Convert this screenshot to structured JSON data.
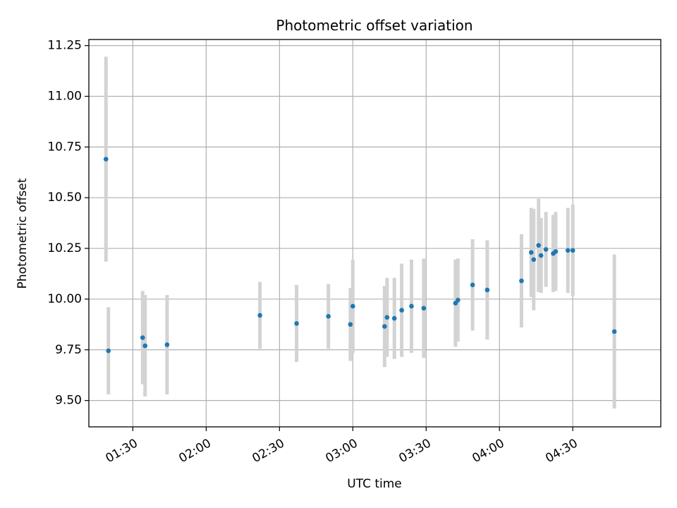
{
  "chart_data": {
    "type": "scatter",
    "title": "Photometric offset variation",
    "xlabel": "UTC time",
    "ylabel": "Photometric offset",
    "x_axis": "time (HH:MM, UTC)",
    "xlim": [
      "01:12",
      "05:06"
    ],
    "ylim": [
      9.37,
      11.28
    ],
    "x_ticks": [
      "01:30",
      "02:00",
      "02:30",
      "03:00",
      "03:30",
      "04:00",
      "04:30"
    ],
    "y_ticks": [
      "9.50",
      "9.75",
      "10.00",
      "10.25",
      "10.50",
      "10.75",
      "11.00",
      "11.25"
    ],
    "grid": true,
    "legend": "none",
    "colors": {
      "marker": "#1f77b4",
      "errorbar": "#d3d3d3",
      "grid": "#b0b0b0"
    },
    "series": [
      {
        "x": [
          "01:19",
          "01:20",
          "01:34",
          "01:35",
          "01:44",
          "02:22",
          "02:37",
          "02:50",
          "02:59",
          "03:00",
          "03:13",
          "03:14",
          "03:17",
          "03:20",
          "03:24",
          "03:29",
          "03:42",
          "03:43",
          "03:49",
          "03:55",
          "04:09",
          "04:13",
          "04:14",
          "04:16",
          "04:17",
          "04:19",
          "04:22",
          "04:23",
          "04:28",
          "04:30",
          "04:47"
        ],
        "y": [
          10.69,
          9.745,
          9.81,
          9.77,
          9.775,
          9.92,
          9.88,
          9.915,
          9.875,
          9.965,
          9.865,
          9.91,
          9.905,
          9.945,
          9.965,
          9.955,
          9.98,
          9.995,
          10.07,
          10.045,
          10.09,
          10.23,
          10.195,
          10.265,
          10.215,
          10.245,
          10.225,
          10.235,
          10.24,
          10.24,
          9.84
        ],
        "yerr": [
          0.505,
          0.215,
          0.23,
          0.25,
          0.245,
          0.165,
          0.19,
          0.16,
          0.18,
          0.23,
          0.2,
          0.195,
          0.2,
          0.23,
          0.23,
          0.245,
          0.215,
          0.205,
          0.225,
          0.245,
          0.23,
          0.22,
          0.25,
          0.23,
          0.185,
          0.185,
          0.19,
          0.195,
          0.21,
          0.225,
          0.38
        ]
      }
    ]
  }
}
